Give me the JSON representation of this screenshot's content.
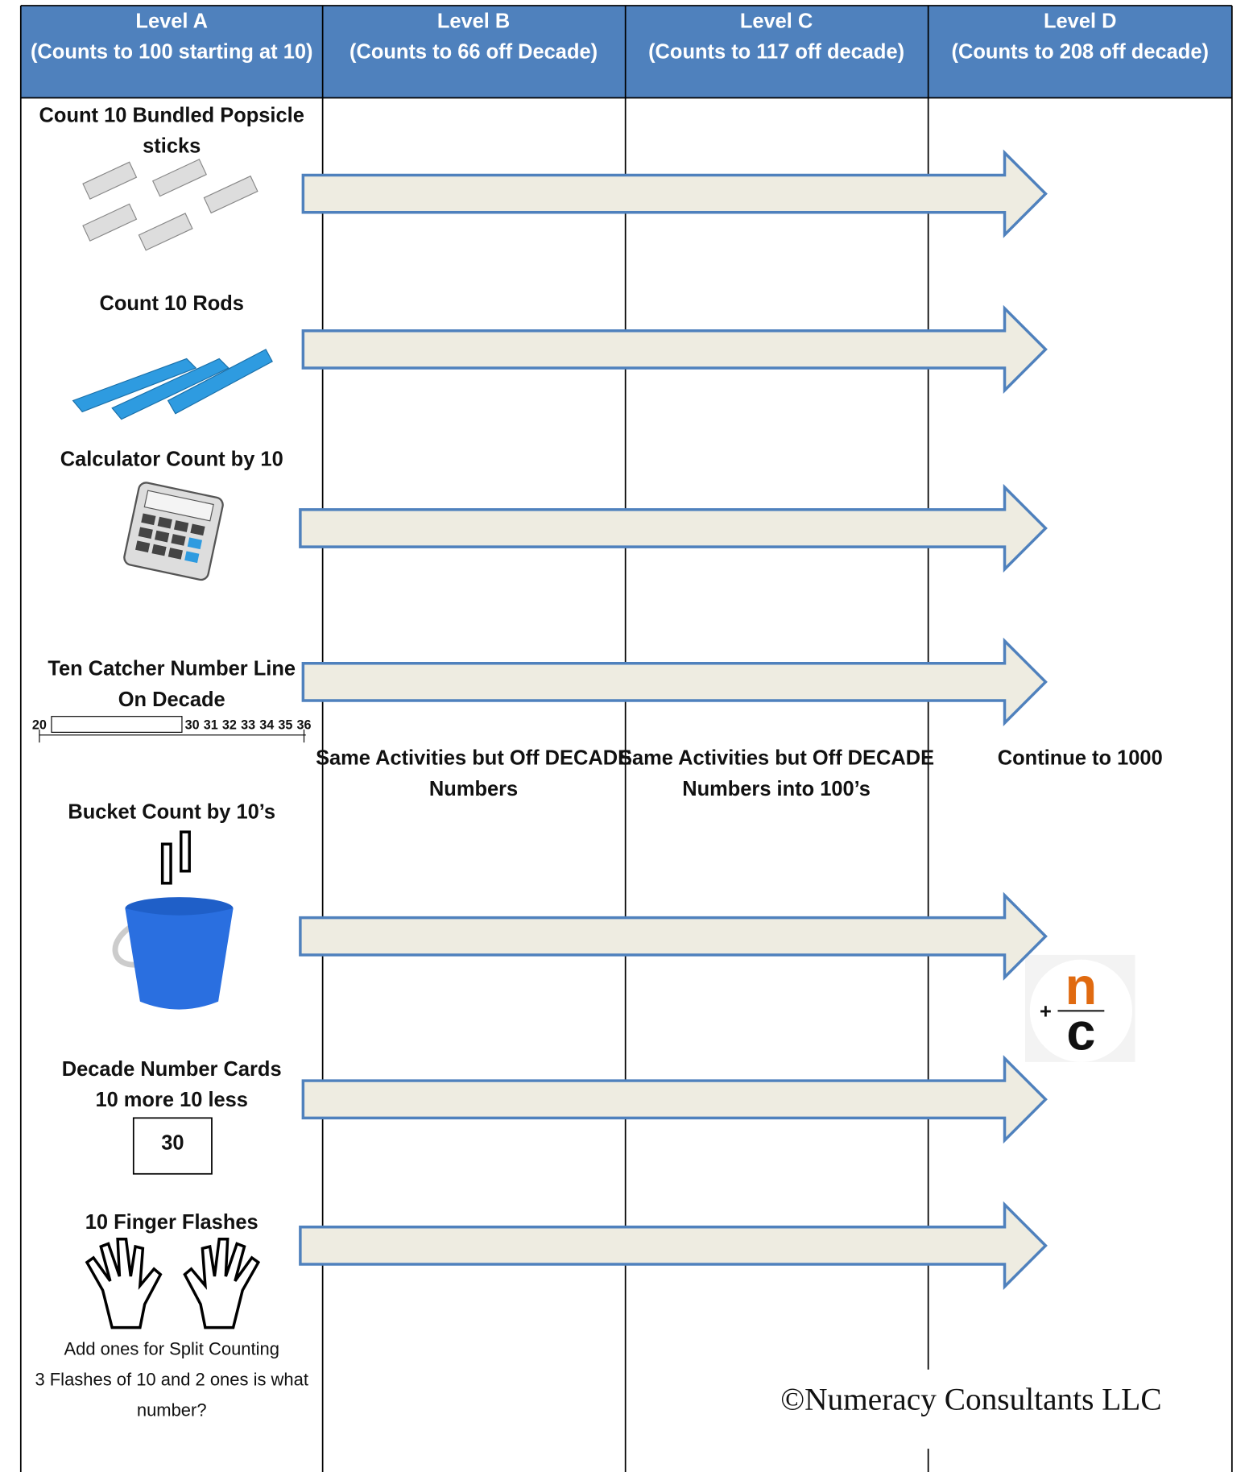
{
  "header": {
    "columns": [
      {
        "title": "Level A",
        "subtitle": "(Counts to 100 starting at 10)"
      },
      {
        "title": "Level B",
        "subtitle": "(Counts to 66 off Decade)"
      },
      {
        "title": "Level C",
        "subtitle": "(Counts to 117 off decade)"
      },
      {
        "title": "Level D",
        "subtitle": "(Counts to 208 off decade)"
      }
    ]
  },
  "activities": [
    {
      "lines": [
        "Count 10 Bundled Popsicle",
        "sticks"
      ]
    },
    {
      "lines": [
        "Count 10 Rods"
      ]
    },
    {
      "lines": [
        "Calculator Count by 10"
      ]
    },
    {
      "lines": [
        "Ten Catcher Number Line",
        "On Decade"
      ]
    },
    {
      "lines": [
        "Bucket Count by 10’s"
      ]
    },
    {
      "lines": [
        "Decade Number Cards",
        "10 more 10 less"
      ]
    },
    {
      "lines": [
        "10 Finger Flashes"
      ]
    }
  ],
  "number_line": {
    "start": "20",
    "labels": [
      "30",
      "31",
      "32",
      "33",
      "34",
      "35",
      "36"
    ]
  },
  "number_card": "30",
  "split_counting": [
    "Add ones for Split Counting",
    "3 Flashes of 10 and 2 ones is what",
    "number?"
  ],
  "level_notes": [
    {
      "lines": [
        "Same Activities but Off DECADE",
        "Numbers"
      ]
    },
    {
      "lines": [
        "Same Activities but Off DECADE",
        "Numbers into 100’s"
      ]
    },
    {
      "lines": [
        "Continue to 1000"
      ]
    }
  ],
  "logo": {
    "plus": "+",
    "top": "n",
    "bottom": "c"
  },
  "copyright": "©Numeracy Consultants LLC"
}
